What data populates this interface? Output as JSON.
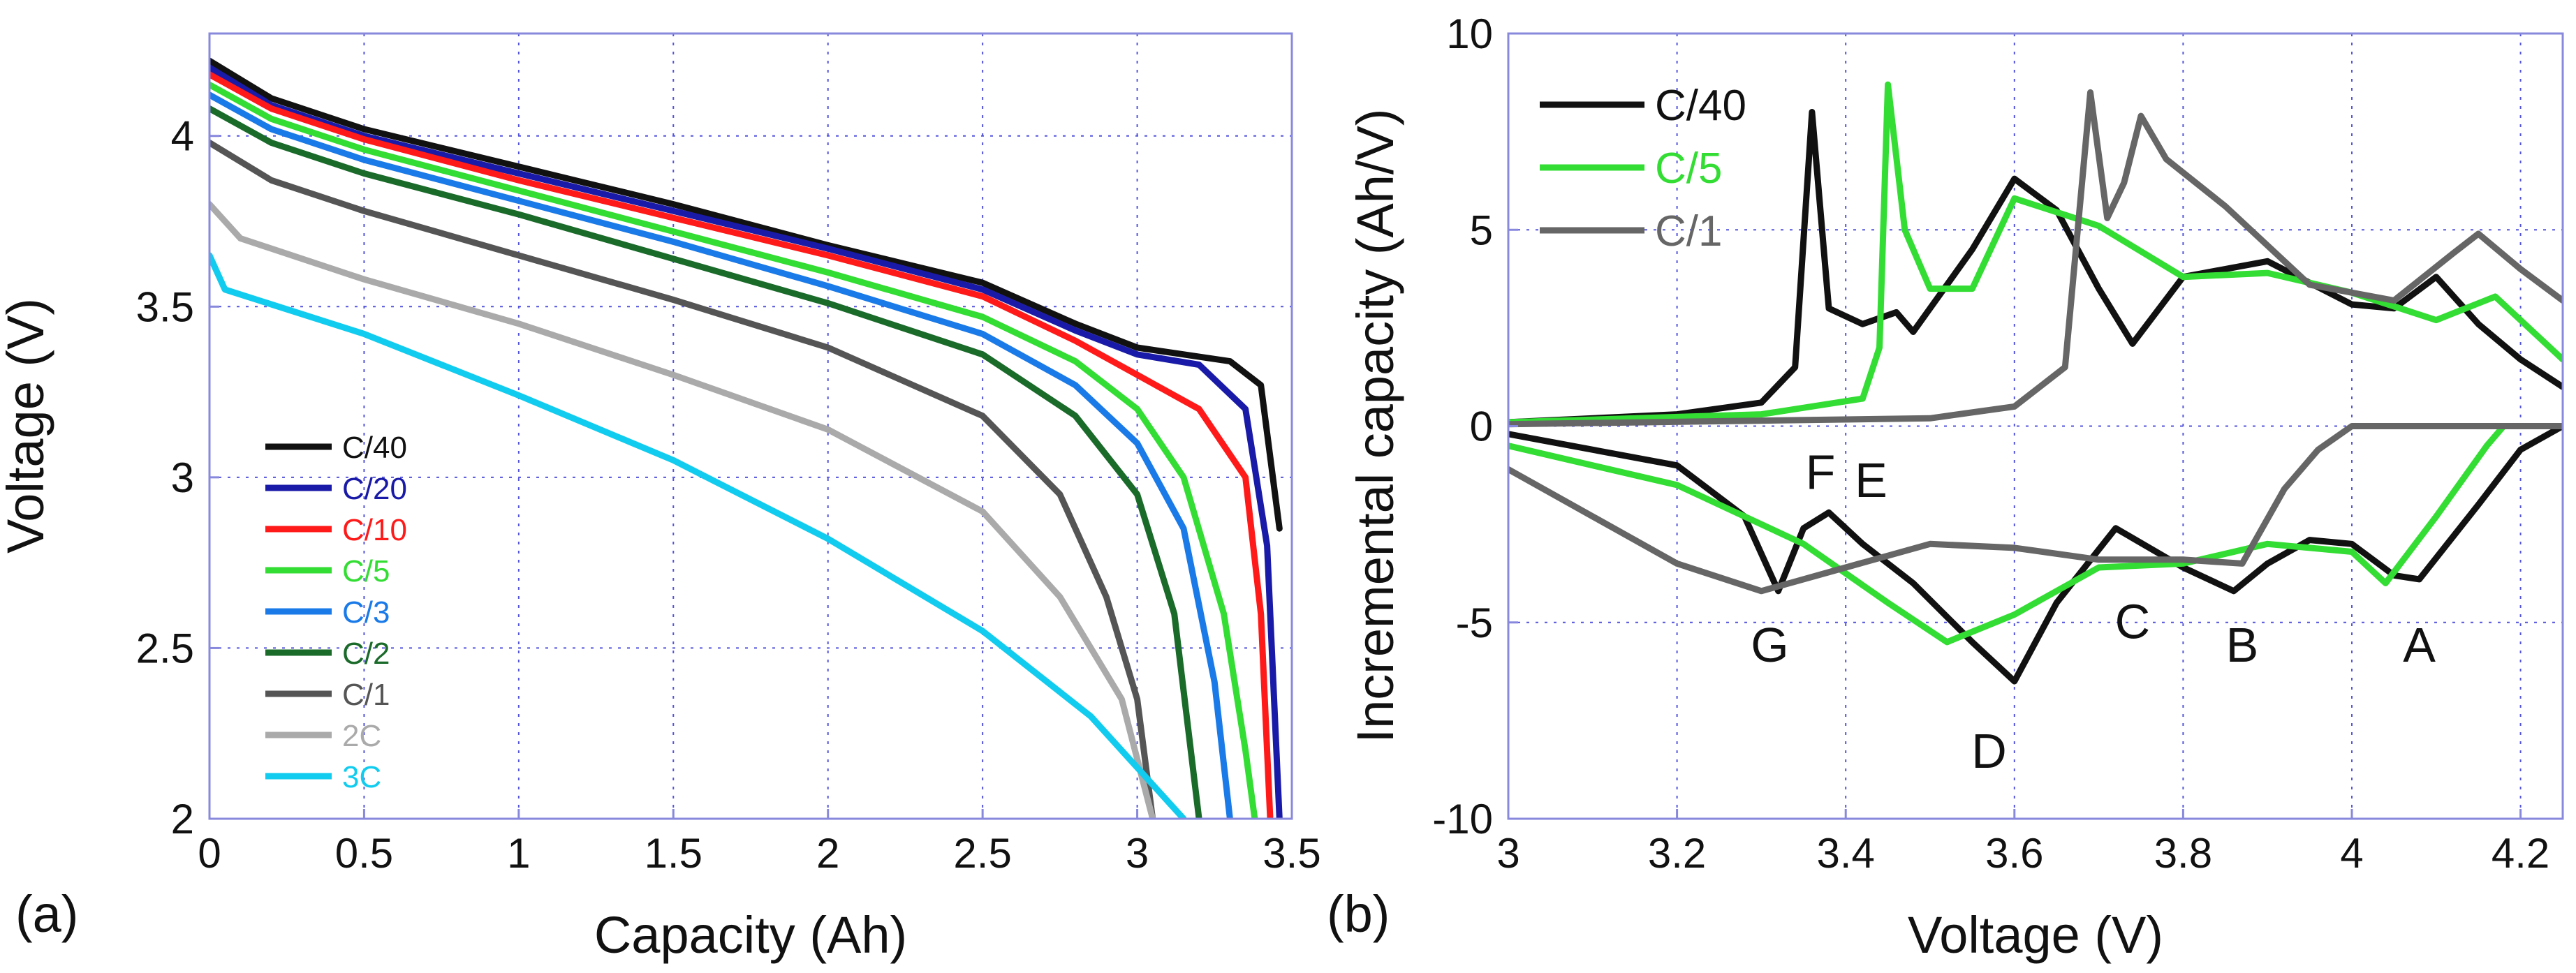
{
  "figure": {
    "panel_a_label": "(a)",
    "panel_b_label": "(b)"
  },
  "chart_data": [
    {
      "panel": "(a)",
      "type": "line",
      "title": "",
      "xlabel": "Capacity (Ah)",
      "ylabel": "Voltage (V)",
      "xlim": [
        0,
        3.5
      ],
      "ylim": [
        2,
        4.3
      ],
      "xticks": [
        "0",
        "0.5",
        "1",
        "1.5",
        "2",
        "2.5",
        "3",
        "3.5"
      ],
      "yticks": [
        "2",
        "2.5",
        "3",
        "3.5",
        "4"
      ],
      "grid": "dotted blue",
      "legend": "lower-left",
      "series": [
        {
          "name": "C/40",
          "color": "#111111",
          "charge": [
            [
              0,
              4.22
            ],
            [
              0.2,
              4.11
            ],
            [
              0.5,
              4.02
            ],
            [
              1,
              3.91
            ],
            [
              1.5,
              3.8
            ],
            [
              2,
              3.68
            ],
            [
              2.5,
              3.57
            ],
            [
              2.8,
              3.45
            ],
            [
              3.0,
              3.38
            ],
            [
              3.3,
              3.34
            ],
            [
              3.4,
              3.27
            ],
            [
              3.46,
              2.85
            ]
          ],
          "discharge": [
            [
              0,
              4.22
            ],
            [
              0.2,
              4.11
            ],
            [
              0.5,
              4.02
            ],
            [
              1,
              3.91
            ],
            [
              1.5,
              3.8
            ],
            [
              2,
              3.68
            ],
            [
              2.5,
              3.57
            ],
            [
              2.8,
              3.45
            ],
            [
              3.0,
              3.38
            ],
            [
              3.3,
              3.34
            ],
            [
              3.4,
              3.27
            ],
            [
              3.46,
              2.85
            ]
          ]
        },
        {
          "name": "C/20",
          "color": "#1a1aa8",
          "discharge": [
            [
              0,
              4.2
            ],
            [
              0.2,
              4.09
            ],
            [
              0.5,
              4.0
            ],
            [
              1,
              3.89
            ],
            [
              1.5,
              3.78
            ],
            [
              2,
              3.67
            ],
            [
              2.5,
              3.55
            ],
            [
              2.8,
              3.43
            ],
            [
              3.0,
              3.36
            ],
            [
              3.2,
              3.33
            ],
            [
              3.35,
              3.2
            ],
            [
              3.42,
              2.8
            ],
            [
              3.46,
              2.0
            ]
          ]
        },
        {
          "name": "C/10",
          "color": "#ff1a1a",
          "discharge": [
            [
              0,
              4.18
            ],
            [
              0.2,
              4.08
            ],
            [
              0.5,
              3.99
            ],
            [
              1,
              3.87
            ],
            [
              1.5,
              3.76
            ],
            [
              2,
              3.65
            ],
            [
              2.5,
              3.53
            ],
            [
              2.8,
              3.4
            ],
            [
              3.0,
              3.3
            ],
            [
              3.2,
              3.2
            ],
            [
              3.35,
              3.0
            ],
            [
              3.4,
              2.6
            ],
            [
              3.43,
              2.0
            ]
          ]
        },
        {
          "name": "C/5",
          "color": "#33dd33",
          "discharge": [
            [
              0,
              4.15
            ],
            [
              0.2,
              4.05
            ],
            [
              0.5,
              3.96
            ],
            [
              1,
              3.84
            ],
            [
              1.5,
              3.72
            ],
            [
              2,
              3.6
            ],
            [
              2.5,
              3.47
            ],
            [
              2.8,
              3.34
            ],
            [
              3.0,
              3.2
            ],
            [
              3.15,
              3.0
            ],
            [
              3.28,
              2.6
            ],
            [
              3.35,
              2.2
            ],
            [
              3.38,
              2.0
            ]
          ]
        },
        {
          "name": "C/3",
          "color": "#1a7ae8",
          "discharge": [
            [
              0,
              4.12
            ],
            [
              0.2,
              4.02
            ],
            [
              0.5,
              3.93
            ],
            [
              1,
              3.81
            ],
            [
              1.5,
              3.69
            ],
            [
              2,
              3.56
            ],
            [
              2.5,
              3.42
            ],
            [
              2.8,
              3.27
            ],
            [
              3.0,
              3.1
            ],
            [
              3.15,
              2.85
            ],
            [
              3.25,
              2.4
            ],
            [
              3.3,
              2.0
            ]
          ]
        },
        {
          "name": "C/2",
          "color": "#1a6a2a",
          "discharge": [
            [
              0,
              4.08
            ],
            [
              0.2,
              3.98
            ],
            [
              0.5,
              3.89
            ],
            [
              1,
              3.77
            ],
            [
              1.5,
              3.64
            ],
            [
              2,
              3.51
            ],
            [
              2.5,
              3.36
            ],
            [
              2.8,
              3.18
            ],
            [
              3.0,
              2.95
            ],
            [
              3.12,
              2.6
            ],
            [
              3.2,
              2.0
            ]
          ]
        },
        {
          "name": "C/1",
          "color": "#555555",
          "discharge": [
            [
              0,
              3.98
            ],
            [
              0.2,
              3.87
            ],
            [
              0.5,
              3.78
            ],
            [
              1,
              3.65
            ],
            [
              1.5,
              3.52
            ],
            [
              2,
              3.38
            ],
            [
              2.5,
              3.18
            ],
            [
              2.75,
              2.95
            ],
            [
              2.9,
              2.65
            ],
            [
              3.0,
              2.35
            ],
            [
              3.05,
              2.0
            ]
          ]
        },
        {
          "name": "2C",
          "color": "#aaaaaa",
          "discharge": [
            [
              0,
              3.8
            ],
            [
              0.1,
              3.7
            ],
            [
              0.5,
              3.58
            ],
            [
              1,
              3.45
            ],
            [
              1.5,
              3.3
            ],
            [
              2,
              3.14
            ],
            [
              2.5,
              2.9
            ],
            [
              2.75,
              2.65
            ],
            [
              2.95,
              2.35
            ],
            [
              3.05,
              2.0
            ]
          ]
        },
        {
          "name": "3C",
          "color": "#11ccee",
          "discharge": [
            [
              0,
              3.65
            ],
            [
              0.05,
              3.55
            ],
            [
              0.5,
              3.42
            ],
            [
              1,
              3.24
            ],
            [
              1.5,
              3.05
            ],
            [
              2,
              2.82
            ],
            [
              2.5,
              2.55
            ],
            [
              2.85,
              2.3
            ],
            [
              3.05,
              2.1
            ],
            [
              3.15,
              2.0
            ]
          ]
        }
      ]
    },
    {
      "panel": "(b)",
      "type": "line",
      "title": "",
      "xlabel": "Voltage (V)",
      "ylabel": "Incremental capacity (Ah/V)",
      "xlim": [
        3,
        4.25
      ],
      "ylim": [
        -10,
        10
      ],
      "xticks": [
        "3",
        "3.2",
        "3.4",
        "3.6",
        "3.8",
        "4",
        "4.2"
      ],
      "yticks": [
        "-10",
        "-5",
        "0",
        "5",
        "10"
      ],
      "grid": "dotted blue",
      "legend": "top-left",
      "peak_labels": [
        "A",
        "B",
        "C",
        "D",
        "E",
        "F",
        "G"
      ],
      "series": [
        {
          "name": "C/40",
          "color": "#111111",
          "charge": [
            [
              3.0,
              0.1
            ],
            [
              3.2,
              0.3
            ],
            [
              3.3,
              0.6
            ],
            [
              3.34,
              1.5
            ],
            [
              3.36,
              8.0
            ],
            [
              3.38,
              3.0
            ],
            [
              3.42,
              2.6
            ],
            [
              3.46,
              2.9
            ],
            [
              3.48,
              2.4
            ],
            [
              3.55,
              4.5
            ],
            [
              3.6,
              6.3
            ],
            [
              3.65,
              5.5
            ],
            [
              3.7,
              3.5
            ],
            [
              3.74,
              2.1
            ],
            [
              3.8,
              3.8
            ],
            [
              3.9,
              4.2
            ],
            [
              4.0,
              3.1
            ],
            [
              4.05,
              3.0
            ],
            [
              4.1,
              3.8
            ],
            [
              4.15,
              2.6
            ],
            [
              4.2,
              1.7
            ],
            [
              4.25,
              1.0
            ]
          ],
          "discharge": [
            [
              3.0,
              -0.2
            ],
            [
              3.2,
              -1.0
            ],
            [
              3.28,
              -2.3
            ],
            [
              3.32,
              -4.2
            ],
            [
              3.35,
              -2.6
            ],
            [
              3.38,
              -2.2
            ],
            [
              3.42,
              -3.0
            ],
            [
              3.48,
              -4.0
            ],
            [
              3.55,
              -5.5
            ],
            [
              3.6,
              -6.5
            ],
            [
              3.65,
              -4.5
            ],
            [
              3.72,
              -2.6
            ],
            [
              3.8,
              -3.6
            ],
            [
              3.86,
              -4.2
            ],
            [
              3.9,
              -3.5
            ],
            [
              3.95,
              -2.9
            ],
            [
              4.0,
              -3.0
            ],
            [
              4.05,
              -3.8
            ],
            [
              4.08,
              -3.9
            ],
            [
              4.15,
              -2.0
            ],
            [
              4.2,
              -0.6
            ],
            [
              4.25,
              0
            ]
          ]
        },
        {
          "name": "C/5",
          "color": "#33dd33",
          "charge": [
            [
              3.0,
              0.1
            ],
            [
              3.3,
              0.3
            ],
            [
              3.42,
              0.7
            ],
            [
              3.44,
              2.0
            ],
            [
              3.45,
              8.7
            ],
            [
              3.47,
              5.0
            ],
            [
              3.5,
              3.5
            ],
            [
              3.55,
              3.5
            ],
            [
              3.6,
              5.8
            ],
            [
              3.7,
              5.1
            ],
            [
              3.8,
              3.8
            ],
            [
              3.9,
              3.9
            ],
            [
              4.0,
              3.4
            ],
            [
              4.1,
              2.7
            ],
            [
              4.17,
              3.3
            ],
            [
              4.25,
              1.7
            ]
          ],
          "discharge": [
            [
              3.0,
              -0.5
            ],
            [
              3.2,
              -1.5
            ],
            [
              3.35,
              -3.0
            ],
            [
              3.45,
              -4.5
            ],
            [
              3.52,
              -5.5
            ],
            [
              3.6,
              -4.8
            ],
            [
              3.7,
              -3.6
            ],
            [
              3.8,
              -3.5
            ],
            [
              3.9,
              -3.0
            ],
            [
              4.0,
              -3.2
            ],
            [
              4.04,
              -4.0
            ],
            [
              4.1,
              -2.3
            ],
            [
              4.16,
              -0.5
            ],
            [
              4.18,
              0
            ]
          ]
        },
        {
          "name": "C/1",
          "color": "#666666",
          "charge": [
            [
              3.0,
              0.05
            ],
            [
              3.5,
              0.2
            ],
            [
              3.6,
              0.5
            ],
            [
              3.66,
              1.5
            ],
            [
              3.69,
              8.5
            ],
            [
              3.71,
              5.3
            ],
            [
              3.73,
              6.2
            ],
            [
              3.75,
              7.9
            ],
            [
              3.78,
              6.8
            ],
            [
              3.85,
              5.6
            ],
            [
              3.95,
              3.6
            ],
            [
              4.05,
              3.2
            ],
            [
              4.12,
              4.4
            ],
            [
              4.15,
              4.9
            ],
            [
              4.2,
              4.0
            ],
            [
              4.25,
              3.2
            ]
          ],
          "discharge": [
            [
              3.0,
              -1.1
            ],
            [
              3.1,
              -2.3
            ],
            [
              3.2,
              -3.5
            ],
            [
              3.3,
              -4.2
            ],
            [
              3.4,
              -3.6
            ],
            [
              3.5,
              -3.0
            ],
            [
              3.6,
              -3.1
            ],
            [
              3.7,
              -3.4
            ],
            [
              3.8,
              -3.4
            ],
            [
              3.87,
              -3.5
            ],
            [
              3.92,
              -1.6
            ],
            [
              3.96,
              -0.6
            ],
            [
              4.0,
              0
            ],
            [
              4.25,
              0
            ]
          ]
        }
      ]
    }
  ]
}
